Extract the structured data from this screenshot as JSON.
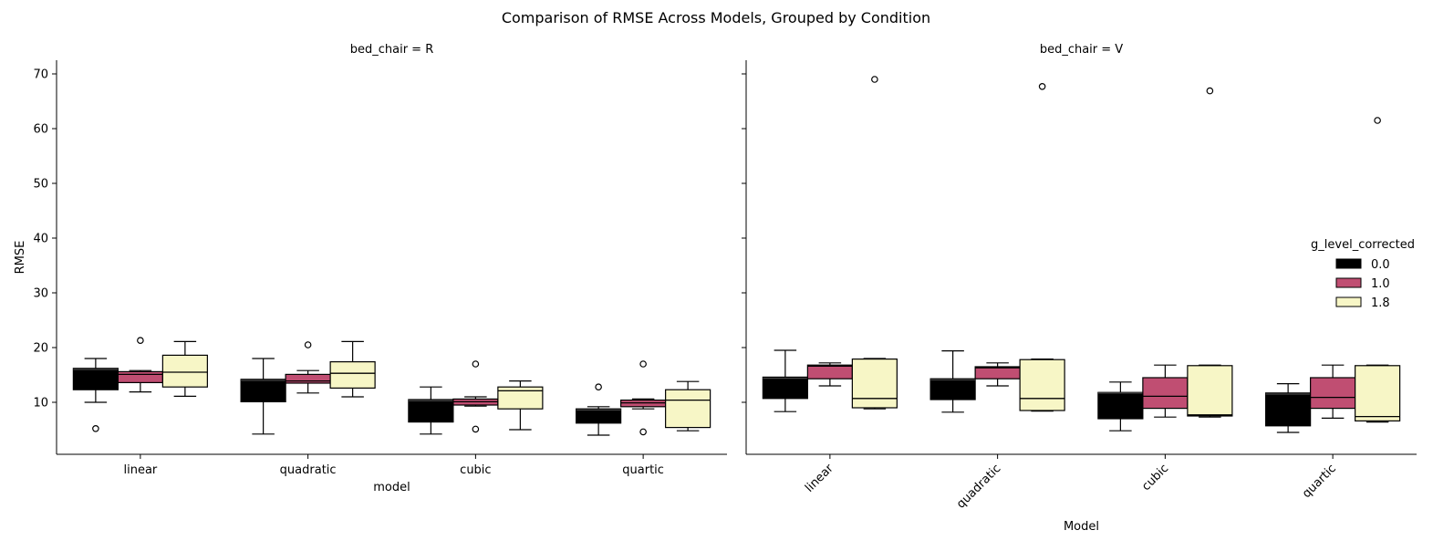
{
  "chart_data": {
    "type": "box",
    "title": "Comparison of RMSE Across Models, Grouped by Condition",
    "ylabel": "RMSE",
    "ylim": [
      0.5,
      72.5
    ],
    "yticks": [
      10,
      20,
      30,
      40,
      50,
      60,
      70
    ],
    "grid": false,
    "shared_y": true,
    "legend": {
      "title": "g_level_corrected",
      "placement": "center-right",
      "entries": [
        "0.0",
        "1.0",
        "1.8"
      ]
    },
    "series_colors": [
      "#000000",
      "#c04e72",
      "#f7f6c6"
    ],
    "categories": [
      "linear",
      "quadratic",
      "cubic",
      "quartic"
    ],
    "panels": [
      {
        "title": "bed_chair = R",
        "xlabel": "model",
        "xtick_rotation": 0,
        "boxes": [
          [
            {
              "whislo": 10.0,
              "q1": 12.3,
              "med": 16.0,
              "q3": 16.2,
              "whishi": 18.0,
              "fliers": [
                5.2
              ]
            },
            {
              "whislo": 11.9,
              "q1": 13.6,
              "med": 15.1,
              "q3": 15.6,
              "whishi": 15.8,
              "fliers": [
                21.3
              ]
            },
            {
              "whislo": 11.1,
              "q1": 12.8,
              "med": 15.5,
              "q3": 18.6,
              "whishi": 21.1,
              "fliers": []
            }
          ],
          [
            {
              "whislo": 4.2,
              "q1": 10.1,
              "med": 14.0,
              "q3": 14.2,
              "whishi": 18.0,
              "fliers": []
            },
            {
              "whislo": 11.7,
              "q1": 13.5,
              "med": 13.9,
              "q3": 15.1,
              "whishi": 15.8,
              "fliers": [
                20.5
              ]
            },
            {
              "whislo": 11.0,
              "q1": 12.6,
              "med": 15.3,
              "q3": 17.4,
              "whishi": 21.1,
              "fliers": []
            }
          ],
          [
            {
              "whislo": 4.2,
              "q1": 6.4,
              "med": 10.3,
              "q3": 10.5,
              "whishi": 12.8,
              "fliers": []
            },
            {
              "whislo": 9.3,
              "q1": 9.5,
              "med": 10.1,
              "q3": 10.6,
              "whishi": 11.0,
              "fliers": [
                5.1,
                17.0
              ]
            },
            {
              "whislo": 5.0,
              "q1": 8.8,
              "med": 12.1,
              "q3": 12.8,
              "whishi": 13.9,
              "fliers": []
            }
          ],
          [
            {
              "whislo": 4.0,
              "q1": 6.2,
              "med": 8.6,
              "q3": 8.8,
              "whishi": 9.2,
              "fliers": [
                12.8
              ]
            },
            {
              "whislo": 8.8,
              "q1": 9.2,
              "med": 9.9,
              "q3": 10.4,
              "whishi": 10.6,
              "fliers": [
                4.6,
                17.0
              ]
            },
            {
              "whislo": 4.8,
              "q1": 5.4,
              "med": 10.4,
              "q3": 12.3,
              "whishi": 13.8,
              "fliers": []
            }
          ]
        ]
      },
      {
        "title": "bed_chair = V",
        "xlabel": "Model",
        "xtick_rotation": -45,
        "boxes": [
          [
            {
              "whislo": 8.3,
              "q1": 10.7,
              "med": 14.4,
              "q3": 14.6,
              "whishi": 19.5,
              "fliers": []
            },
            {
              "whislo": 13.0,
              "q1": 14.3,
              "med": 16.6,
              "q3": 16.8,
              "whishi": 17.2,
              "fliers": []
            },
            {
              "whislo": 8.8,
              "q1": 9.0,
              "med": 10.7,
              "q3": 17.9,
              "whishi": 18.0,
              "fliers": [
                69.0
              ]
            }
          ],
          [
            {
              "whislo": 8.2,
              "q1": 10.5,
              "med": 14.1,
              "q3": 14.3,
              "whishi": 19.4,
              "fliers": []
            },
            {
              "whislo": 13.0,
              "q1": 14.3,
              "med": 16.3,
              "q3": 16.5,
              "whishi": 17.2,
              "fliers": []
            },
            {
              "whislo": 8.4,
              "q1": 8.5,
              "med": 10.7,
              "q3": 17.8,
              "whishi": 17.9,
              "fliers": [
                67.7
              ]
            }
          ],
          [
            {
              "whislo": 4.8,
              "q1": 7.0,
              "med": 11.7,
              "q3": 11.8,
              "whishi": 13.7,
              "fliers": []
            },
            {
              "whislo": 7.3,
              "q1": 8.9,
              "med": 11.1,
              "q3": 14.5,
              "whishi": 16.8,
              "fliers": []
            },
            {
              "whislo": 7.3,
              "q1": 7.5,
              "med": 7.7,
              "q3": 16.7,
              "whishi": 16.8,
              "fliers": [
                66.9
              ]
            }
          ],
          [
            {
              "whislo": 4.5,
              "q1": 5.7,
              "med": 11.5,
              "q3": 11.7,
              "whishi": 13.4,
              "fliers": []
            },
            {
              "whislo": 7.1,
              "q1": 8.9,
              "med": 10.9,
              "q3": 14.5,
              "whishi": 16.8,
              "fliers": []
            },
            {
              "whislo": 6.4,
              "q1": 6.6,
              "med": 7.4,
              "q3": 16.7,
              "whishi": 16.8,
              "fliers": [
                61.5
              ]
            }
          ]
        ]
      }
    ]
  }
}
